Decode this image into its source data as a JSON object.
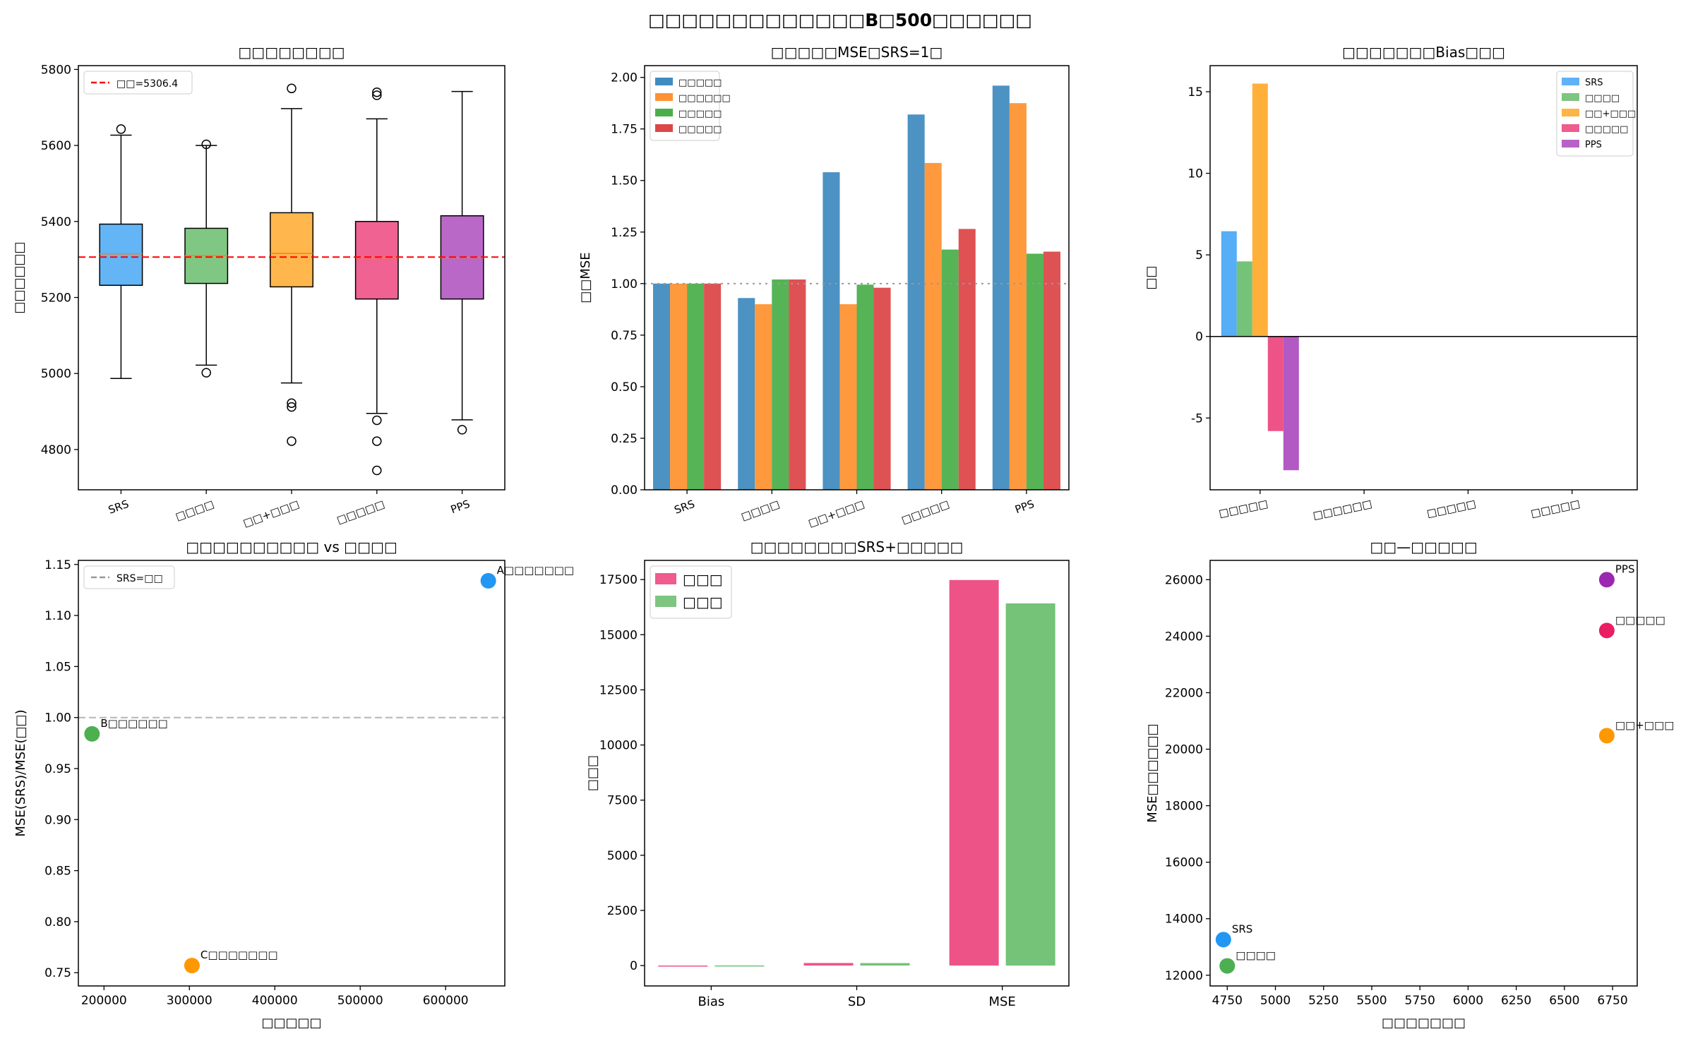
{
  "suptitle": "□□□□□□□□□□□□□B□500□□□□□□",
  "chart_data": [
    {
      "type": "box",
      "title": "□□□□□□□□",
      "xlabel": "",
      "ylabel": "□□□□□□",
      "categories": [
        "SRS",
        "□□□□",
        "□□+□□□",
        "□□□□□",
        "PPS"
      ],
      "colors": [
        "#64b5f6",
        "#81c784",
        "#ffb74d",
        "#f06292",
        "#ba68c8"
      ],
      "ylim": [
        4694,
        5810
      ],
      "yticks": [
        4800,
        5000,
        5200,
        5400,
        5600,
        5800
      ],
      "boxes": [
        {
          "whislo": 4987,
          "q1": 5232,
          "med": 5315,
          "q3": 5393,
          "whishi": 5627,
          "fliers": [
            5643
          ]
        },
        {
          "whislo": 5022,
          "q1": 5237,
          "med": 5310,
          "q3": 5382,
          "whishi": 5600,
          "fliers": [
            5002,
            5603
          ]
        },
        {
          "whislo": 4975,
          "q1": 5228,
          "med": 5316,
          "q3": 5423,
          "whishi": 5697,
          "fliers": [
            5750,
            4922,
            4912,
            4822
          ]
        },
        {
          "whislo": 4895,
          "q1": 5196,
          "med": 5305,
          "q3": 5400,
          "whishi": 5670,
          "fliers": [
            5740,
            5732,
            4877,
            4822,
            4745
          ]
        },
        {
          "whislo": 4878,
          "q1": 5196,
          "med": 5305,
          "q3": 5415,
          "whishi": 5742,
          "fliers": [
            4852
          ]
        }
      ],
      "reference_line": {
        "value": 5306.4,
        "label": "□□=5306.4",
        "color": "#ff0000"
      },
      "legend": "top-left",
      "grid": false
    },
    {
      "type": "bar",
      "title": "□□□□□MSE□SRS=1□",
      "xlabel": "",
      "ylabel": "□□MSE",
      "categories": [
        "SRS",
        "□□□□",
        "□□+□□□",
        "□□□□□",
        "PPS"
      ],
      "ylim": [
        0,
        2.057
      ],
      "yticks": [
        0,
        0.25,
        0.5,
        0.75,
        1.0,
        1.25,
        1.5,
        1.75,
        2.0
      ],
      "series": [
        {
          "name": "□□□□□",
          "color": "#1f77b4",
          "values": [
            1.0,
            0.93,
            1.54,
            1.82,
            1.96
          ]
        },
        {
          "name": "□□□□□□",
          "color": "#ff7f0e",
          "values": [
            1.0,
            0.9,
            0.9,
            1.585,
            1.875
          ]
        },
        {
          "name": "□□□□□",
          "color": "#2ca02c",
          "values": [
            1.0,
            1.02,
            0.995,
            1.165,
            1.145
          ]
        },
        {
          "name": "□□□□□",
          "color": "#d62728",
          "values": [
            1.0,
            1.02,
            0.98,
            1.265,
            1.155
          ]
        }
      ],
      "reference_line": {
        "value": 1.0,
        "color": "#999999"
      },
      "legend": "top-left",
      "grid": false
    },
    {
      "type": "bar",
      "title": "□□□□□□□Bias□□□",
      "xlabel": "",
      "ylabel": "□□",
      "categories": [
        "□□□□□",
        "□□□□□□",
        "□□□□□",
        "□□□□□"
      ],
      "ylim": [
        -9.4,
        16.6
      ],
      "yticks": [
        -5,
        0,
        5,
        10,
        15
      ],
      "series": [
        {
          "name": "SRS",
          "color": "#42a5f5",
          "values": [
            6.45,
            0,
            0,
            0
          ]
        },
        {
          "name": "□□□□",
          "color": "#66bb6a",
          "values": [
            4.6,
            0,
            0,
            0
          ]
        },
        {
          "name": "□□+□□□",
          "color": "#ffa726",
          "values": [
            15.5,
            0,
            0,
            0
          ]
        },
        {
          "name": "□□□□□",
          "color": "#ec407a",
          "values": [
            -5.8,
            0,
            0,
            0
          ]
        },
        {
          "name": "PPS",
          "color": "#ab47bc",
          "values": [
            -8.2,
            0,
            0,
            0
          ]
        }
      ],
      "reference_line": {
        "value": 0,
        "color": "#000000"
      },
      "legend": "top-right",
      "grid": false
    },
    {
      "type": "scatter",
      "title": "□□□□□□□□□□ vs □□□□",
      "xlabel": "□□□□□",
      "ylabel": "MSE(SRS)/MSE(□□)",
      "xlim": [
        170000,
        669300
      ],
      "ylim": [
        0.737,
        1.154
      ],
      "xticks": [
        200000,
        300000,
        400000,
        500000,
        600000
      ],
      "yticks": [
        0.75,
        0.8,
        0.85,
        0.9,
        0.95,
        1.0,
        1.05,
        1.1,
        1.15
      ],
      "points": [
        {
          "label": "A□□□□□□□",
          "x": 650000,
          "y": 1.134,
          "color": "#2196f3"
        },
        {
          "label": "B□□□□□□",
          "x": 186000,
          "y": 0.984,
          "color": "#4caf50"
        },
        {
          "label": "C□□□□□□□",
          "x": 303000,
          "y": 0.757,
          "color": "#ff9800"
        }
      ],
      "reference_line": {
        "value": 1.0,
        "label": "SRS=□□",
        "color": "#999999"
      },
      "legend": "top-left",
      "grid": false
    },
    {
      "type": "bar",
      "title": "□□□□□□□□SRS+□□□□□",
      "xlabel": "",
      "ylabel": "□□□",
      "categories": [
        "Bias",
        "SD",
        "MSE"
      ],
      "ylim": [
        -925,
        18370
      ],
      "yticks": [
        0,
        2500,
        5000,
        7500,
        10000,
        12500,
        15000,
        17500
      ],
      "series": [
        {
          "name": "□□□",
          "color": "#ec407a",
          "values": [
            -30,
            115,
            17480
          ]
        },
        {
          "name": "□□□",
          "color": "#66bb6a",
          "values": [
            4.6,
            112,
            16420
          ]
        }
      ],
      "legend": "top-left",
      "grid": false
    },
    {
      "type": "scatter",
      "title": "□□—□□□□□",
      "xlabel": "□□□□□□□",
      "ylabel": "MSE□□□□□□",
      "xlim": [
        4661,
        6878
      ],
      "ylim": [
        11620,
        26683
      ],
      "xticks": [
        4750,
        5000,
        5250,
        5500,
        5750,
        6000,
        6250,
        6500,
        6750
      ],
      "yticks": [
        12000,
        14000,
        16000,
        18000,
        20000,
        22000,
        24000,
        26000
      ],
      "points": [
        {
          "label": "PPS",
          "x": 6720,
          "y": 26000,
          "color": "#9c27b0"
        },
        {
          "label": "□□□□□",
          "x": 6720,
          "y": 24200,
          "color": "#e91e63"
        },
        {
          "label": "□□+□□□",
          "x": 6720,
          "y": 20480,
          "color": "#ff9800"
        },
        {
          "label": "SRS",
          "x": 4730,
          "y": 13260,
          "color": "#2196f3"
        },
        {
          "label": "□□□□",
          "x": 4750,
          "y": 12330,
          "color": "#4caf50"
        }
      ],
      "grid": false
    }
  ]
}
